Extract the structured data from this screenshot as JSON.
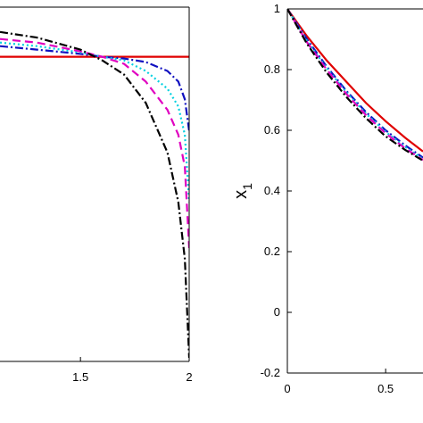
{
  "chart_data": [
    {
      "type": "line",
      "x": [
        1.13,
        1.3,
        1.5,
        1.6,
        1.7,
        1.8,
        1.9,
        1.95,
        1.98,
        2
      ],
      "xlim": [
        1.13,
        2
      ],
      "xticks": [
        1.5,
        2
      ],
      "ylim": [
        0,
        1
      ],
      "series": [
        {
          "color": "#e00000",
          "dash": "solid",
          "values": [
            0.86,
            0.86,
            0.86,
            0.86,
            0.86,
            0.86,
            0.86,
            0.86,
            0.86,
            0.86
          ]
        },
        {
          "color": "#1010c0",
          "dash": "dashdot",
          "values": [
            0.89,
            0.88,
            0.868,
            0.86,
            0.855,
            0.845,
            0.82,
            0.79,
            0.74,
            0.65
          ]
        },
        {
          "color": "#00d0e0",
          "dash": "dotted",
          "values": [
            0.9,
            0.89,
            0.872,
            0.86,
            0.85,
            0.82,
            0.77,
            0.72,
            0.64,
            0.45
          ]
        },
        {
          "color": "#e000c0",
          "dash": "dashed",
          "values": [
            0.91,
            0.9,
            0.875,
            0.86,
            0.84,
            0.79,
            0.71,
            0.64,
            0.55,
            0.32
          ]
        },
        {
          "color": "#000000",
          "dash": "dashdot",
          "values": [
            0.93,
            0.914,
            0.88,
            0.85,
            0.81,
            0.73,
            0.59,
            0.45,
            0.29,
            0.01
          ]
        }
      ]
    },
    {
      "type": "line",
      "ylabel": "x",
      "ylabel_sub": "1",
      "x": [
        0,
        0.1,
        0.2,
        0.3,
        0.4,
        0.5,
        0.6,
        0.69
      ],
      "xlim": [
        0,
        0.69
      ],
      "xticks": [
        0,
        0.5
      ],
      "ylim": [
        -0.2,
        1
      ],
      "yticks": [
        -0.2,
        0,
        0.2,
        0.4,
        0.6,
        0.8,
        1
      ],
      "series": [
        {
          "color": "#e00000",
          "dash": "solid",
          "values": [
            1,
            0.91,
            0.83,
            0.76,
            0.69,
            0.63,
            0.575,
            0.53
          ]
        },
        {
          "color": "#1010c0",
          "dash": "dashdot",
          "values": [
            1,
            0.9,
            0.81,
            0.73,
            0.66,
            0.6,
            0.55,
            0.51
          ]
        },
        {
          "color": "#00d0e0",
          "dash": "dotted",
          "values": [
            1,
            0.895,
            0.805,
            0.725,
            0.655,
            0.595,
            0.545,
            0.505
          ]
        },
        {
          "color": "#e000c0",
          "dash": "dashed",
          "values": [
            1,
            0.89,
            0.8,
            0.72,
            0.65,
            0.59,
            0.54,
            0.502
          ]
        },
        {
          "color": "#000000",
          "dash": "dashdot",
          "values": [
            1,
            0.885,
            0.79,
            0.71,
            0.64,
            0.58,
            0.535,
            0.5
          ]
        }
      ]
    }
  ]
}
